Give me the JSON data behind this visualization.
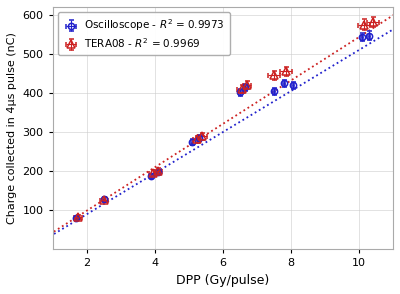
{
  "title": "",
  "xlabel": "DPP (Gy/pulse)",
  "ylabel": "Charge collected in 4μs pulse (nC)",
  "xlim": [
    1.0,
    11.0
  ],
  "ylim": [
    0,
    620
  ],
  "xticks": [
    2,
    4,
    6,
    8,
    10
  ],
  "yticks": [
    100,
    200,
    300,
    400,
    500,
    600
  ],
  "osc_x": [
    1.7,
    2.5,
    3.9,
    4.1,
    5.1,
    5.3,
    6.5,
    6.65,
    7.5,
    7.8,
    8.05,
    10.1,
    10.3
  ],
  "osc_y": [
    80,
    130,
    188,
    198,
    275,
    285,
    402,
    415,
    405,
    425,
    420,
    543,
    547
  ],
  "osc_yerr": [
    4,
    5,
    6,
    6,
    7,
    7,
    9,
    9,
    9,
    9,
    9,
    11,
    11
  ],
  "osc_xerr": [
    0.03,
    0.03,
    0.03,
    0.03,
    0.03,
    0.03,
    0.03,
    0.03,
    0.03,
    0.03,
    0.03,
    0.03,
    0.03
  ],
  "tera_x": [
    1.75,
    2.5,
    3.95,
    4.1,
    5.25,
    5.4,
    6.55,
    6.7,
    7.5,
    7.85,
    10.15,
    10.4
  ],
  "tera_y": [
    82,
    127,
    195,
    200,
    282,
    290,
    410,
    420,
    445,
    455,
    575,
    582
  ],
  "tera_yerr": [
    5,
    6,
    7,
    7,
    9,
    9,
    10,
    10,
    11,
    11,
    13,
    13
  ],
  "tera_xerr": [
    0.12,
    0.12,
    0.12,
    0.12,
    0.12,
    0.12,
    0.12,
    0.12,
    0.18,
    0.18,
    0.18,
    0.18
  ],
  "osc_fit_slope": 52.5,
  "osc_fit_intercept": -15,
  "tera_fit_slope": 55.5,
  "tera_fit_intercept": -12,
  "osc_r2": "0.9973",
  "tera_r2": "0.9969",
  "osc_color": "#2121cc",
  "tera_color": "#cc2121",
  "bg_color": "#ffffff",
  "grid_color": "#cccccc"
}
